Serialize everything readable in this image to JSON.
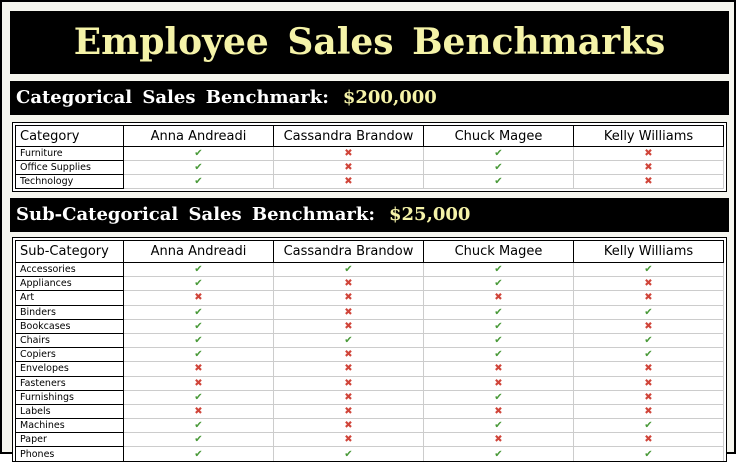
{
  "title": "Employee Sales Benchmarks",
  "category_section": {
    "label": "Categorical Sales Benchmark:",
    "amount": "$200,000",
    "header": "Category",
    "employees": [
      "Anna Andreadi",
      "Cassandra Brandow",
      "Chuck Magee",
      "Kelly Williams"
    ],
    "rows": [
      {
        "name": "Furniture",
        "marks": [
          "yes",
          "no",
          "yes",
          "no"
        ]
      },
      {
        "name": "Office Supplies",
        "marks": [
          "yes",
          "no",
          "yes",
          "no"
        ]
      },
      {
        "name": "Technology",
        "marks": [
          "yes",
          "no",
          "yes",
          "no"
        ]
      }
    ]
  },
  "subcategory_section": {
    "label": "Sub-Categorical Sales Benchmark:",
    "amount": "$25,000",
    "header": "Sub-Category",
    "employees": [
      "Anna Andreadi",
      "Cassandra Brandow",
      "Chuck Magee",
      "Kelly Williams"
    ],
    "rows": [
      {
        "name": "Accessories",
        "marks": [
          "yes",
          "yes",
          "yes",
          "yes"
        ]
      },
      {
        "name": "Appliances",
        "marks": [
          "yes",
          "no",
          "yes",
          "no"
        ]
      },
      {
        "name": "Art",
        "marks": [
          "no",
          "no",
          "no",
          "no"
        ]
      },
      {
        "name": "Binders",
        "marks": [
          "yes",
          "no",
          "yes",
          "yes"
        ]
      },
      {
        "name": "Bookcases",
        "marks": [
          "yes",
          "no",
          "yes",
          "no"
        ]
      },
      {
        "name": "Chairs",
        "marks": [
          "yes",
          "yes",
          "yes",
          "yes"
        ]
      },
      {
        "name": "Copiers",
        "marks": [
          "yes",
          "no",
          "yes",
          "yes"
        ]
      },
      {
        "name": "Envelopes",
        "marks": [
          "no",
          "no",
          "no",
          "no"
        ]
      },
      {
        "name": "Fasteners",
        "marks": [
          "no",
          "no",
          "no",
          "no"
        ]
      },
      {
        "name": "Furnishings",
        "marks": [
          "yes",
          "no",
          "yes",
          "no"
        ]
      },
      {
        "name": "Labels",
        "marks": [
          "no",
          "no",
          "no",
          "no"
        ]
      },
      {
        "name": "Machines",
        "marks": [
          "yes",
          "no",
          "yes",
          "yes"
        ]
      },
      {
        "name": "Paper",
        "marks": [
          "yes",
          "no",
          "no",
          "no"
        ]
      },
      {
        "name": "Phones",
        "marks": [
          "yes",
          "yes",
          "yes",
          "yes"
        ]
      }
    ]
  },
  "icons": {
    "yes": "check-icon",
    "no": "cross-icon"
  },
  "colors": {
    "yes": "#4a9a3a",
    "no": "#d0453a",
    "title_text": "#f5f3a8",
    "bar_bg": "#000000"
  }
}
